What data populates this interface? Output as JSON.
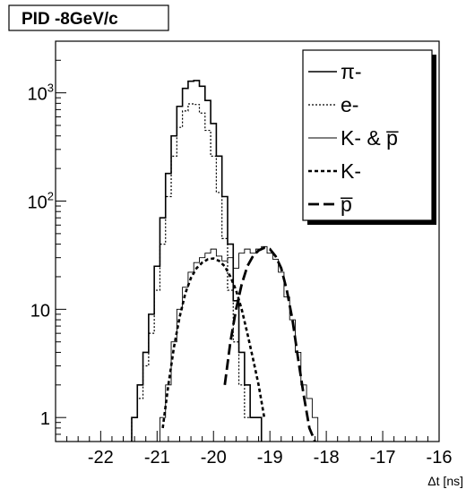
{
  "chart_data": {
    "type": "line",
    "title": "PID -8GeV/c",
    "xlabel": "Δt [ns]",
    "ylabel": "",
    "xlim": [
      -22.8,
      -16.0
    ],
    "ylim": [
      0.6,
      3000
    ],
    "y_scale": "log",
    "grid": false,
    "legend_position": "top-right",
    "x_ticks": [
      "-22",
      "-21",
      "-20",
      "-19",
      "-18",
      "-17",
      "-16"
    ],
    "y_ticks": [
      {
        "value": 1,
        "label": "1",
        "sup": ""
      },
      {
        "value": 10,
        "label": "10",
        "sup": ""
      },
      {
        "value": 100,
        "label": "10",
        "sup": "2"
      },
      {
        "value": 1000,
        "label": "10",
        "sup": "3"
      }
    ],
    "series": [
      {
        "name": "π-",
        "style": "solid",
        "x": [
          -21.4,
          -21.3,
          -21.2,
          -21.1,
          -21.0,
          -20.9,
          -20.8,
          -20.7,
          -20.6,
          -20.5,
          -20.4,
          -20.3,
          -20.2,
          -20.1,
          -20.0,
          -19.9,
          -19.8,
          -19.7,
          -19.6,
          -19.5,
          -19.4,
          -19.3,
          -19.2
        ],
        "y": [
          1,
          2,
          4,
          9,
          25,
          70,
          180,
          400,
          750,
          1100,
          1280,
          1300,
          1150,
          850,
          520,
          260,
          110,
          40,
          12,
          4,
          2,
          1,
          1
        ]
      },
      {
        "name": "e-",
        "style": "dotted",
        "x": [
          -21.4,
          -21.3,
          -21.2,
          -21.1,
          -21.0,
          -20.9,
          -20.8,
          -20.7,
          -20.6,
          -20.5,
          -20.4,
          -20.3,
          -20.2,
          -20.1,
          -20.0,
          -19.9,
          -19.8,
          -19.7,
          -19.6,
          -19.5,
          -19.4,
          -19.3,
          -19.2
        ],
        "y": [
          1,
          1.5,
          3,
          6,
          15,
          40,
          110,
          260,
          480,
          680,
          790,
          780,
          650,
          450,
          260,
          120,
          45,
          15,
          5,
          2,
          1,
          1,
          1
        ]
      },
      {
        "name": "K- & p̅",
        "style": "thin",
        "x": [
          -20.9,
          -20.8,
          -20.7,
          -20.6,
          -20.5,
          -20.4,
          -20.3,
          -20.2,
          -20.1,
          -20.0,
          -19.9,
          -19.8,
          -19.7,
          -19.6,
          -19.5,
          -19.4,
          -19.3,
          -19.2,
          -19.1,
          -19.0,
          -18.9,
          -18.8,
          -18.7,
          -18.6,
          -18.5,
          -18.4,
          -18.3,
          -18.2
        ],
        "y": [
          1,
          2,
          5,
          10,
          16,
          22,
          27,
          30,
          33,
          36,
          31,
          28,
          30,
          24,
          33,
          36,
          33,
          36,
          38,
          33,
          29,
          22,
          13,
          8,
          4,
          2,
          1.5,
          1
        ]
      },
      {
        "name": "K-",
        "style": "dashed",
        "x": [
          -20.9,
          -20.8,
          -20.7,
          -20.6,
          -20.5,
          -20.4,
          -20.3,
          -20.2,
          -20.1,
          -20.0,
          -19.9,
          -19.8,
          -19.7,
          -19.6,
          -19.5,
          -19.4,
          -19.3,
          -19.2,
          -19.1
        ],
        "y": [
          0.8,
          2,
          4.5,
          8.5,
          14,
          19.5,
          24,
          27,
          29,
          29.5,
          28,
          25,
          20,
          15,
          10,
          6,
          3.5,
          2,
          1
        ]
      },
      {
        "name": "p̅",
        "style": "long-dash",
        "x": [
          -19.8,
          -19.7,
          -19.6,
          -19.5,
          -19.4,
          -19.3,
          -19.2,
          -19.1,
          -19.0,
          -18.9,
          -18.8,
          -18.7,
          -18.6,
          -18.5,
          -18.4,
          -18.3,
          -18.2
        ],
        "y": [
          2,
          5,
          10,
          17,
          25,
          31,
          35,
          37,
          36,
          31,
          24,
          15,
          8,
          3.5,
          1.6,
          0.8,
          0.5
        ]
      }
    ]
  }
}
